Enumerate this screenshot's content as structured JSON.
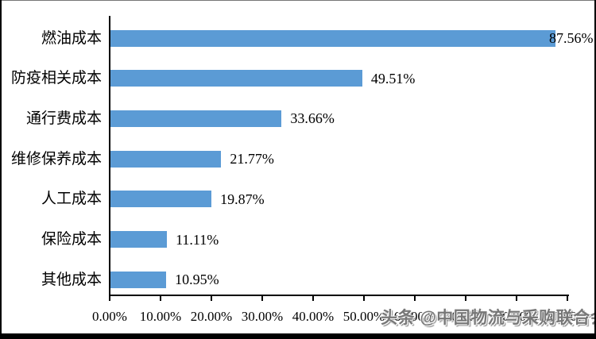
{
  "watermark": "头条 @中国物流与采购联合会",
  "chart_data": {
    "type": "bar",
    "orientation": "horizontal",
    "title": "",
    "xlabel": "",
    "ylabel": "",
    "categories": [
      "燃油成本",
      "防疫相关成本",
      "通行费成本",
      "维修保养成本",
      "人工成本",
      "保险成本",
      "其他成本"
    ],
    "values": [
      87.56,
      49.51,
      33.66,
      21.77,
      19.87,
      11.11,
      10.95
    ],
    "value_labels": [
      "87.56%",
      "49.51%",
      "33.66%",
      "21.77%",
      "19.87%",
      "11.11%",
      "10.95%"
    ],
    "x_tick_labels": [
      "0.00%",
      "10.00%",
      "20.00%",
      "30.00%",
      "40.00%",
      "50.00%",
      "60.00%",
      "70.00%",
      "80.00%",
      "90.00%"
    ],
    "xlim": [
      0,
      90
    ],
    "grid": false,
    "legend_position": "none",
    "bar_color": "#5B9BD5",
    "axis_color": "#000000",
    "text_color": "#000000"
  }
}
